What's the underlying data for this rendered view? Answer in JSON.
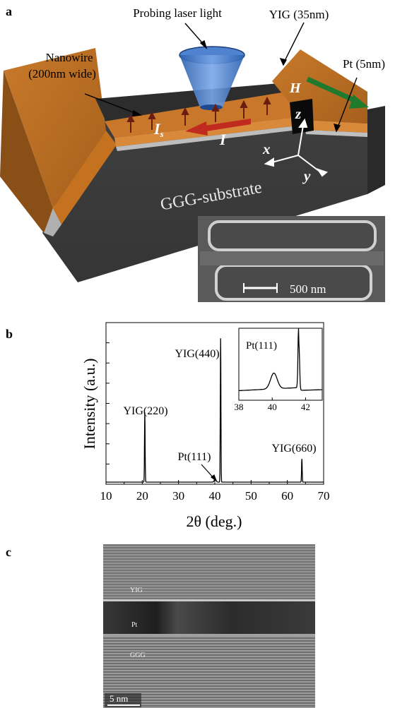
{
  "panel_a": {
    "label": "a",
    "probe_label": "Probing laser light",
    "yig_label": "YIG (35nm)",
    "pt_label": "Pt (5nm)",
    "nanowire_label_1": "Nanowire",
    "nanowire_label_2": "(200nm wide)",
    "h_label": "H",
    "z_label": "z",
    "x_label": "x",
    "y_label": "y",
    "is_label": "I",
    "is_sub": "s",
    "i_label": "I",
    "substrate_label": "GGG-substrate",
    "scale_label": "500 nm"
  },
  "panel_b": {
    "label": "b",
    "ylabel": "Intensity (a.u.)",
    "xlabel": "2θ (deg.)",
    "peak_labels": [
      "YIG(220)",
      "YIG(440)",
      "Pt(111)",
      "YIG(660)"
    ],
    "inset_peak_label": "Pt(111)",
    "x_ticks": [
      "10",
      "20",
      "30",
      "40",
      "50",
      "60",
      "70"
    ],
    "inset_ticks": [
      "38",
      "40",
      "42"
    ]
  },
  "panel_c": {
    "label": "c",
    "yig_label": "YIG",
    "pt_label": "Pt",
    "ggg_label": "GGG",
    "scale_label": "5 nm"
  },
  "chart_data": {
    "type": "line",
    "xlabel": "2θ (deg.)",
    "ylabel": "Intensity (a.u.)",
    "xlim": [
      10,
      70
    ],
    "x_ticks": [
      10,
      20,
      30,
      40,
      50,
      60,
      70
    ],
    "y_ticks_labeled": false,
    "peaks": [
      {
        "label": "YIG(220)",
        "x": 20.7,
        "relative_intensity": 0.45
      },
      {
        "label": "Pt(111)",
        "x": 40.1,
        "relative_intensity": 0.02
      },
      {
        "label": "YIG(440)",
        "x": 41.6,
        "relative_intensity": 0.93
      },
      {
        "label": "YIG(660)",
        "x": 64.0,
        "relative_intensity": 0.15
      }
    ],
    "inset": {
      "xlim": [
        38,
        43
      ],
      "x_ticks": [
        38,
        40,
        42
      ],
      "annotation": "Pt(111)",
      "shoulder_peak_x": 40.1,
      "main_peak_x": 41.6
    }
  }
}
